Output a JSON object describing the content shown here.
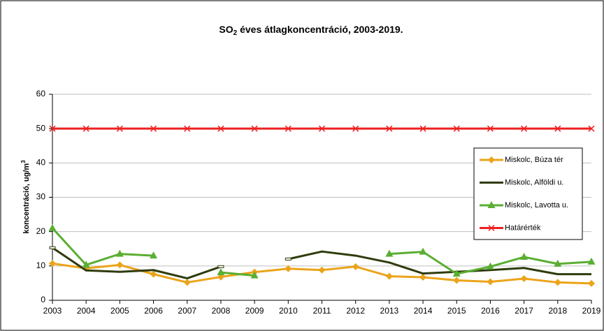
{
  "chart_data": {
    "type": "line",
    "title_parts": [
      "SO",
      "2",
      " éves átlagkoncentráció, 2003-2019."
    ],
    "y_label_parts": [
      "koncentráció, ug/m",
      "3"
    ],
    "categories": [
      "2003",
      "2004",
      "2005",
      "2006",
      "2007",
      "2008",
      "2009",
      "2010",
      "2011",
      "2012",
      "2013",
      "2014",
      "2015",
      "2016",
      "2017",
      "2018",
      "2019"
    ],
    "ylim": [
      0,
      60
    ],
    "yticks": [
      0,
      10,
      20,
      30,
      40,
      50,
      60
    ],
    "grid": true,
    "legend": "right",
    "series": [
      {
        "name": "Miskolc, Búza tér",
        "color": "#eba41a",
        "marker": "diamond",
        "values": [
          10.7,
          9.3,
          10.3,
          7.6,
          5.2,
          6.8,
          8.2,
          9.2,
          8.8,
          9.8,
          7.0,
          6.7,
          5.8,
          5.4,
          6.3,
          5.2,
          4.9
        ]
      },
      {
        "name": "Miskolc, Alföldi u.",
        "color": "#2f3b0c",
        "marker": "none",
        "values": [
          15.3,
          8.7,
          8.3,
          8.8,
          6.4,
          9.8,
          null,
          12.0,
          14.2,
          13.0,
          11.0,
          7.8,
          8.3,
          8.8,
          9.4,
          7.6,
          7.6
        ]
      },
      {
        "name": "Miskolc, Lavotta u.",
        "color": "#5aae32",
        "marker": "triangle",
        "values": [
          21.0,
          10.3,
          13.5,
          13.0,
          null,
          8.1,
          7.2,
          null,
          null,
          null,
          13.5,
          14.1,
          7.7,
          9.8,
          12.6,
          10.6,
          11.2
        ]
      },
      {
        "name": "Határérték",
        "color": "#ee2020",
        "marker": "x",
        "values": [
          50,
          50,
          50,
          50,
          50,
          50,
          50,
          50,
          50,
          50,
          50,
          50,
          50,
          50,
          50,
          50,
          50
        ]
      }
    ]
  }
}
